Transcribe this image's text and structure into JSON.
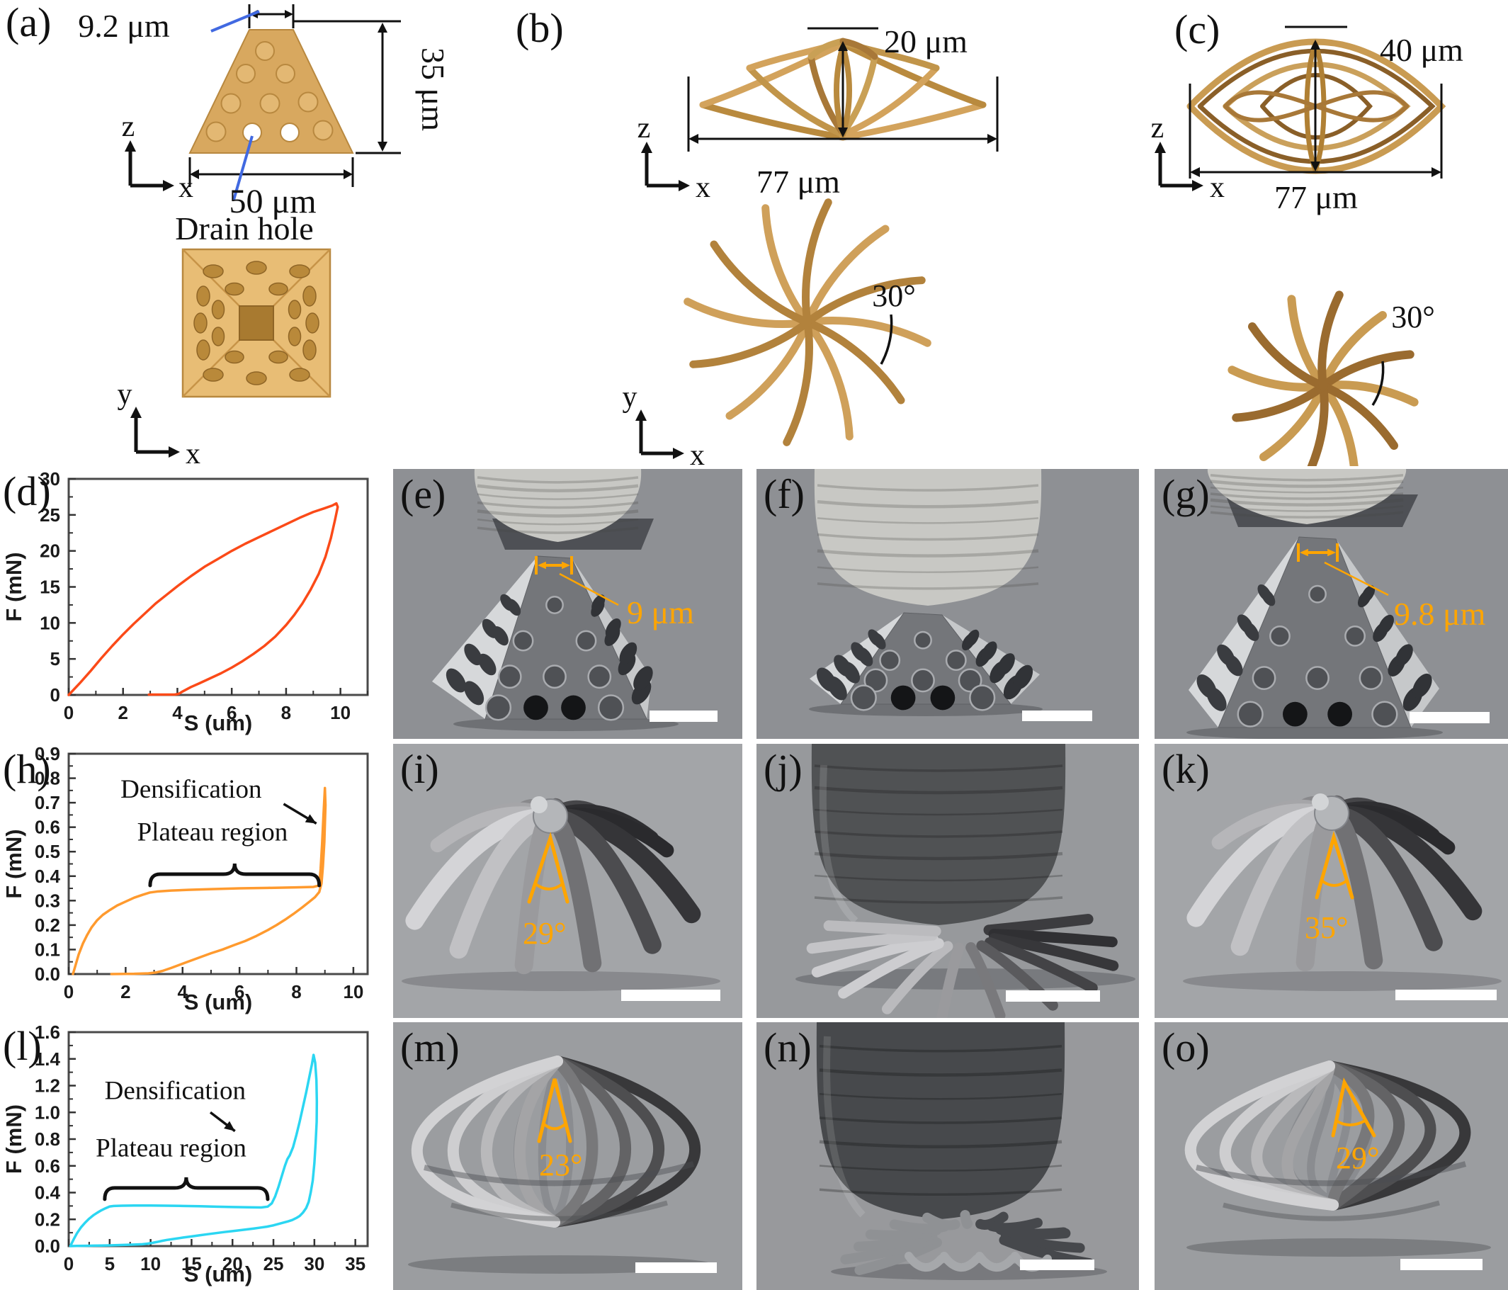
{
  "figure": {
    "colors": {
      "accent_orange": "#FFA500",
      "gold": "#D8A85F",
      "curve_d": "#FB4A18",
      "curve_h": "#FF9A2E",
      "curve_l": "#2BD6F2",
      "callout_blue": "#4169E1"
    },
    "panels": {
      "a": {
        "label": "(a)",
        "dim_top": "9.2 μm",
        "dim_height": "35 μm",
        "dim_width": "50 μm",
        "callout": "Drain hole",
        "side_axes": {
          "vertical": "z",
          "horizontal": "x"
        },
        "top_axes": {
          "vertical": "y",
          "horizontal": "x"
        }
      },
      "b": {
        "label": "(b)",
        "dim_height": "20 μm",
        "dim_width": "77 μm",
        "angle": "30°",
        "side_axes": {
          "vertical": "z",
          "horizontal": "x"
        },
        "top_axes": {
          "vertical": "y",
          "horizontal": "x"
        }
      },
      "c": {
        "label": "(c)",
        "dim_height": "40 μm",
        "dim_width": "77 μm",
        "angle": "30°",
        "side_axes": {
          "vertical": "z",
          "horizontal": "x"
        },
        "top_axes": {
          "vertical": "y",
          "horizontal": "x"
        }
      },
      "e": {
        "label": "(e)",
        "measurement": "9 μm"
      },
      "f": {
        "label": "(f)"
      },
      "g": {
        "label": "(g)",
        "measurement": "9.8 μm"
      },
      "i": {
        "label": "(i)",
        "angle": "29°"
      },
      "j": {
        "label": "(j)"
      },
      "k": {
        "label": "(k)",
        "angle": "35°"
      },
      "m": {
        "label": "(m)",
        "angle": "23°"
      },
      "n": {
        "label": "(n)"
      },
      "o": {
        "label": "(o)",
        "angle": "29°"
      }
    }
  },
  "chart_data": [
    {
      "id": "d",
      "panel_label": "(d)",
      "type": "line",
      "xlabel": "S (um)",
      "ylabel": "F (mN)",
      "xlim": [
        0,
        11
      ],
      "ylim": [
        0,
        30
      ],
      "grid": false,
      "legend": null,
      "xticks": [
        0,
        2,
        4,
        6,
        8,
        10
      ],
      "yticks": [
        0,
        5,
        10,
        15,
        20,
        25,
        30
      ],
      "xtick_labels": [
        "0",
        "2",
        "4",
        "6",
        "8",
        "10"
      ],
      "ytick_labels": [
        "0",
        "5",
        "10",
        "15",
        "20",
        "25",
        "30"
      ],
      "series": [
        {
          "name": "loading-unloading hysteresis",
          "color": "#FB4A18",
          "points": [
            [
              0,
              0
            ],
            [
              0.4,
              1.6
            ],
            [
              0.8,
              3.3
            ],
            [
              1.2,
              5.1
            ],
            [
              1.6,
              6.8
            ],
            [
              2,
              8.4
            ],
            [
              2.4,
              9.9
            ],
            [
              2.8,
              11.3
            ],
            [
              3.2,
              12.7
            ],
            [
              3.6,
              13.9
            ],
            [
              4,
              15.1
            ],
            [
              4.5,
              16.5
            ],
            [
              5,
              17.8
            ],
            [
              5.5,
              18.9
            ],
            [
              6,
              20
            ],
            [
              6.5,
              21
            ],
            [
              7,
              21.9
            ],
            [
              7.5,
              22.8
            ],
            [
              8,
              23.7
            ],
            [
              8.5,
              24.6
            ],
            [
              9,
              25.4
            ],
            [
              9.4,
              25.9
            ],
            [
              9.7,
              26.3
            ],
            [
              9.85,
              26.6
            ],
            [
              9.9,
              26.1
            ],
            [
              9.8,
              24.3
            ],
            [
              9.65,
              21.8
            ],
            [
              9.45,
              19.2
            ],
            [
              9.2,
              16.8
            ],
            [
              8.9,
              14.6
            ],
            [
              8.6,
              12.7
            ],
            [
              8.3,
              11.1
            ],
            [
              8,
              9.7
            ],
            [
              7.6,
              8.1
            ],
            [
              7.2,
              6.8
            ],
            [
              6.8,
              5.7
            ],
            [
              6.4,
              4.7
            ],
            [
              6,
              3.8
            ],
            [
              5.6,
              3
            ],
            [
              5.2,
              2.3
            ],
            [
              4.8,
              1.6
            ],
            [
              4.5,
              1.1
            ],
            [
              4.2,
              0.5
            ],
            [
              4.05,
              0.15
            ],
            [
              3.9,
              0.05
            ],
            [
              3.4,
              0.05
            ],
            [
              2.95,
              0.05
            ]
          ]
        }
      ],
      "annotations": []
    },
    {
      "id": "h",
      "panel_label": "(h)",
      "type": "line",
      "xlabel": "S (um)",
      "ylabel": "F (mN)",
      "xlim": [
        0,
        10.5
      ],
      "ylim": [
        0,
        0.9
      ],
      "grid": false,
      "legend": null,
      "xticks": [
        0,
        2,
        4,
        6,
        8,
        10
      ],
      "yticks": [
        0,
        0.1,
        0.2,
        0.3,
        0.4,
        0.5,
        0.6,
        0.7,
        0.8,
        0.9
      ],
      "xtick_labels": [
        "0",
        "2",
        "4",
        "6",
        "8",
        "10"
      ],
      "ytick_labels": [
        "0.0",
        "0.1",
        "0.2",
        "0.3",
        "0.4",
        "0.5",
        "0.6",
        "0.7",
        "0.8",
        "0.9"
      ],
      "series": [
        {
          "name": "loading-unloading with plateau and densification",
          "color": "#FF9A2E",
          "points": [
            [
              0.15,
              0
            ],
            [
              0.25,
              0.04
            ],
            [
              0.35,
              0.08
            ],
            [
              0.5,
              0.125
            ],
            [
              0.65,
              0.16
            ],
            [
              0.8,
              0.19
            ],
            [
              1,
              0.22
            ],
            [
              1.2,
              0.242
            ],
            [
              1.45,
              0.262
            ],
            [
              1.7,
              0.28
            ],
            [
              2,
              0.296
            ],
            [
              2.3,
              0.312
            ],
            [
              2.6,
              0.324
            ],
            [
              2.85,
              0.333
            ],
            [
              3.1,
              0.337
            ],
            [
              3.6,
              0.341
            ],
            [
              4.2,
              0.344
            ],
            [
              5,
              0.347
            ],
            [
              6,
              0.35
            ],
            [
              7,
              0.352
            ],
            [
              8,
              0.354
            ],
            [
              8.6,
              0.356
            ],
            [
              8.8,
              0.362
            ],
            [
              8.85,
              0.43
            ],
            [
              8.9,
              0.53
            ],
            [
              8.95,
              0.65
            ],
            [
              9,
              0.76
            ],
            [
              9.02,
              0.69
            ],
            [
              8.98,
              0.54
            ],
            [
              8.93,
              0.44
            ],
            [
              8.88,
              0.37
            ],
            [
              8.8,
              0.335
            ],
            [
              8.65,
              0.314
            ],
            [
              8.45,
              0.295
            ],
            [
              8.2,
              0.272
            ],
            [
              7.9,
              0.246
            ],
            [
              7.6,
              0.222
            ],
            [
              7.3,
              0.2
            ],
            [
              7,
              0.18
            ],
            [
              6.6,
              0.156
            ],
            [
              6.2,
              0.135
            ],
            [
              5.8,
              0.118
            ],
            [
              5.4,
              0.1
            ],
            [
              5,
              0.085
            ],
            [
              4.6,
              0.068
            ],
            [
              4.2,
              0.051
            ],
            [
              3.9,
              0.038
            ],
            [
              3.6,
              0.025
            ],
            [
              3.3,
              0.013
            ],
            [
              3.05,
              0.006
            ],
            [
              2.8,
              0.003
            ],
            [
              2.3,
              0.001
            ],
            [
              1.5,
              0
            ]
          ]
        }
      ],
      "annotations": [
        {
          "type": "text",
          "text": "Densification",
          "x": 4.3,
          "y": 0.72
        },
        {
          "type": "arrow",
          "x1": 7.55,
          "y1": 0.695,
          "x2": 8.7,
          "y2": 0.615
        },
        {
          "type": "text",
          "text": "Plateau region",
          "x": 5.05,
          "y": 0.545
        },
        {
          "type": "brace",
          "x1": 2.86,
          "x2": 8.8,
          "y": 0.408
        }
      ]
    },
    {
      "id": "l",
      "panel_label": "(l)",
      "type": "line",
      "xlabel": "S (um)",
      "ylabel": "F (mN)",
      "xlim": [
        0,
        36.5
      ],
      "ylim": [
        0,
        1.6
      ],
      "grid": false,
      "legend": null,
      "xticks": [
        0,
        5,
        10,
        15,
        20,
        25,
        30,
        35
      ],
      "yticks": [
        0,
        0.2,
        0.4,
        0.6,
        0.8,
        1.0,
        1.2,
        1.4,
        1.6
      ],
      "xtick_labels": [
        "0",
        "5",
        "10",
        "15",
        "20",
        "25",
        "30",
        "35"
      ],
      "ytick_labels": [
        "0.0",
        "0.2",
        "0.4",
        "0.6",
        "0.8",
        "1.0",
        "1.2",
        "1.4",
        "1.6"
      ],
      "series": [
        {
          "name": "loading-unloading with plateau and densification",
          "color": "#2BD6F2",
          "points": [
            [
              0.2,
              0
            ],
            [
              0.6,
              0.05
            ],
            [
              1,
              0.095
            ],
            [
              1.5,
              0.14
            ],
            [
              2,
              0.175
            ],
            [
              2.5,
              0.205
            ],
            [
              3,
              0.23
            ],
            [
              3.5,
              0.25
            ],
            [
              4,
              0.268
            ],
            [
              4.5,
              0.283
            ],
            [
              5,
              0.296
            ],
            [
              5.5,
              0.3
            ],
            [
              6.5,
              0.302
            ],
            [
              8,
              0.303
            ],
            [
              10,
              0.303
            ],
            [
              12,
              0.302
            ],
            [
              14,
              0.3
            ],
            [
              16,
              0.298
            ],
            [
              18,
              0.295
            ],
            [
              20,
              0.292
            ],
            [
              22,
              0.29
            ],
            [
              23.5,
              0.289
            ],
            [
              24.3,
              0.295
            ],
            [
              24.8,
              0.32
            ],
            [
              25.2,
              0.37
            ],
            [
              25.6,
              0.44
            ],
            [
              26,
              0.52
            ],
            [
              26.4,
              0.6
            ],
            [
              26.7,
              0.65
            ],
            [
              27,
              0.68
            ],
            [
              27.4,
              0.74
            ],
            [
              27.8,
              0.83
            ],
            [
              28.2,
              0.93
            ],
            [
              28.6,
              1.04
            ],
            [
              29,
              1.15
            ],
            [
              29.4,
              1.27
            ],
            [
              29.7,
              1.36
            ],
            [
              29.9,
              1.43
            ],
            [
              30.1,
              1.37
            ],
            [
              30.25,
              1.24
            ],
            [
              30.3,
              1.08
            ],
            [
              30.28,
              0.93
            ],
            [
              30.15,
              0.77
            ],
            [
              30,
              0.62
            ],
            [
              29.8,
              0.49
            ],
            [
              29.55,
              0.4
            ],
            [
              29.3,
              0.33
            ],
            [
              29,
              0.285
            ],
            [
              28.6,
              0.25
            ],
            [
              28.2,
              0.225
            ],
            [
              27.8,
              0.21
            ],
            [
              27.3,
              0.195
            ],
            [
              26.8,
              0.185
            ],
            [
              26.2,
              0.175
            ],
            [
              25.6,
              0.165
            ],
            [
              25,
              0.155
            ],
            [
              24.2,
              0.145
            ],
            [
              23.4,
              0.138
            ],
            [
              22.6,
              0.131
            ],
            [
              21.8,
              0.125
            ],
            [
              21,
              0.119
            ],
            [
              20,
              0.112
            ],
            [
              19,
              0.105
            ],
            [
              18,
              0.097
            ],
            [
              17,
              0.089
            ],
            [
              16,
              0.081
            ],
            [
              15,
              0.072
            ],
            [
              14,
              0.064
            ],
            [
              13,
              0.055
            ],
            [
              12,
              0.046
            ],
            [
              11.4,
              0.039
            ],
            [
              10.8,
              0.031
            ],
            [
              10.2,
              0.024
            ],
            [
              9.6,
              0.018
            ],
            [
              9,
              0.014
            ],
            [
              8,
              0.011
            ],
            [
              7,
              0.009
            ],
            [
              6,
              0.007
            ],
            [
              5,
              0.005
            ],
            [
              4,
              0.004
            ],
            [
              3,
              0.003
            ],
            [
              2,
              0.002
            ],
            [
              1,
              0.001
            ],
            [
              0.3,
              0
            ]
          ]
        }
      ],
      "annotations": [
        {
          "type": "text",
          "text": "Densification",
          "x": 13,
          "y": 1.1
        },
        {
          "type": "arrow",
          "x1": 17.3,
          "y1": 1.0,
          "x2": 20.3,
          "y2": 0.86
        },
        {
          "type": "text",
          "text": "Plateau region",
          "x": 12.5,
          "y": 0.67
        },
        {
          "type": "brace",
          "x1": 4.4,
          "x2": 24.3,
          "y": 0.435
        }
      ]
    }
  ]
}
